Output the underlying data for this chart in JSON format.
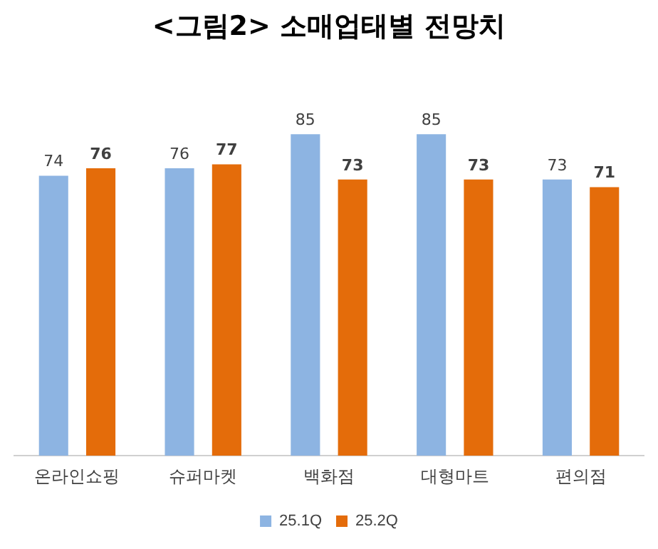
{
  "chart_data": {
    "type": "bar",
    "title": "<그림2> 소매업태별 전망치",
    "categories": [
      "온라인쇼핑",
      "슈퍼마켓",
      "백화점",
      "대형마트",
      "편의점"
    ],
    "series": [
      {
        "name": "25.1Q",
        "color": "#8db4e2",
        "values": [
          74,
          76,
          85,
          85,
          73
        ]
      },
      {
        "name": "25.2Q",
        "color": "#e46c0a",
        "values": [
          76,
          77,
          73,
          73,
          71
        ]
      }
    ],
    "data_labels": true,
    "legend": "bottom",
    "grid": false
  }
}
